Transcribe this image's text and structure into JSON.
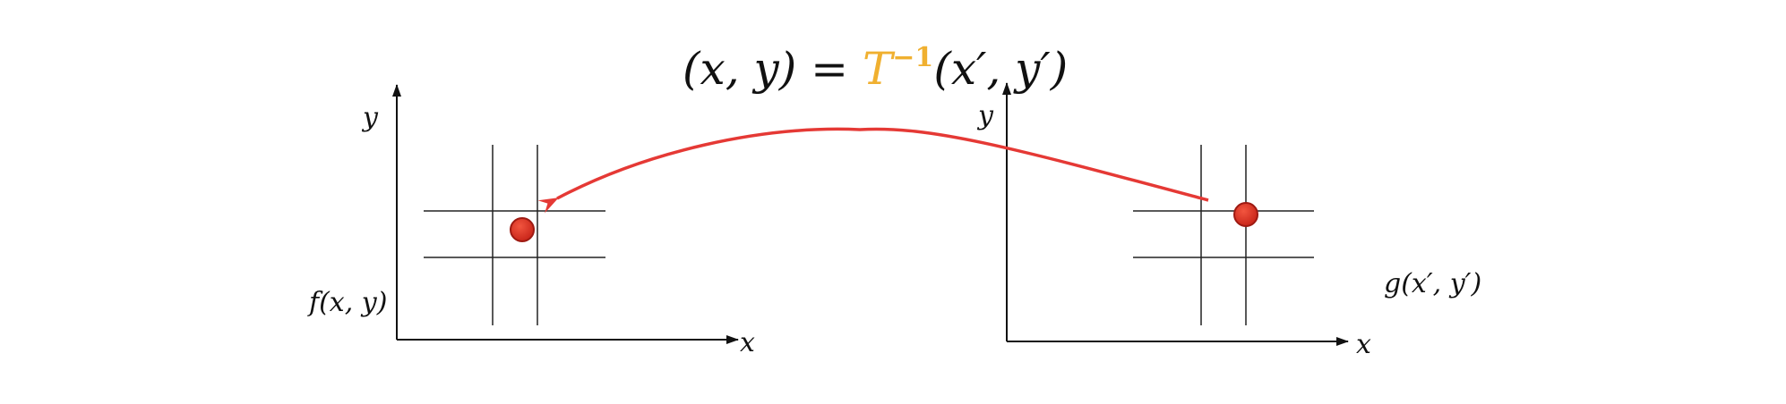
{
  "formula": {
    "lhs": "(x, y) = ",
    "operator": "T",
    "superscript": "−1",
    "rhs": "(x′, y′)"
  },
  "left_plot": {
    "x_axis_label": "x",
    "y_axis_label": "y",
    "function_label": "f(x, y)"
  },
  "right_plot": {
    "x_axis_label": "x",
    "y_axis_label": "y",
    "function_label": "g(x′, y′)"
  },
  "colors": {
    "arrow": "#E53935",
    "point_fill": "#E53422",
    "point_stroke": "#9E1A12",
    "accent": "#F0B030",
    "line": "#222222"
  }
}
